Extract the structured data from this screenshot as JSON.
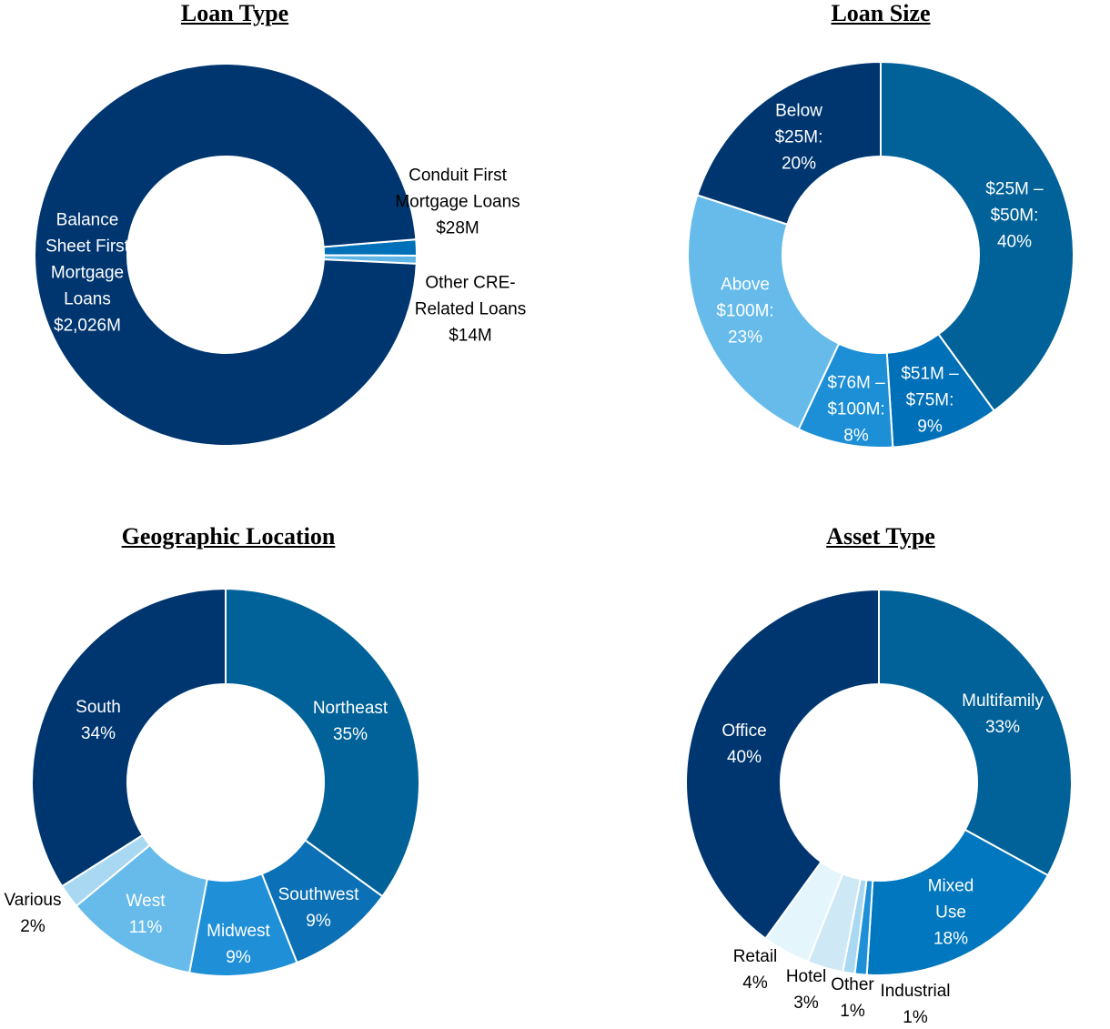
{
  "chart_data": [
    {
      "type": "donut",
      "title": "Loan Type",
      "categories": [
        "Conduit First Mortgage Loans",
        "Other CRE-Related Loans",
        "Balance Sheet First Mortgage Loans"
      ],
      "values": [
        28,
        14,
        2026
      ],
      "value_labels": [
        "$28M",
        "$14M",
        "$2,026M"
      ],
      "colors": [
        "#0070b8",
        "#5fb4e6",
        "#003670"
      ]
    },
    {
      "type": "donut",
      "title": "Loan Size",
      "categories": [
        "$25M – $50M:",
        "$51M – $75M:",
        "$76M – $100M:",
        "Above $100M:",
        "Below $25M:"
      ],
      "values": [
        40,
        9,
        8,
        23,
        20
      ],
      "value_labels": [
        "40%",
        "9%",
        "8%",
        "23%",
        "20%"
      ],
      "colors": [
        "#006299",
        "#0070b8",
        "#1c8fd6",
        "#66bbeb",
        "#003670"
      ]
    },
    {
      "type": "donut",
      "title": "Geographic Location",
      "categories": [
        "Northeast",
        "Southwest",
        "Midwest",
        "West",
        "Various",
        "South"
      ],
      "values": [
        35,
        9,
        9,
        11,
        2,
        34
      ],
      "value_labels": [
        "35%",
        "9%",
        "9%",
        "11%",
        "2%",
        "34%"
      ],
      "colors": [
        "#006299",
        "#0b70b5",
        "#1f90d8",
        "#66bbea",
        "#a9d8f2",
        "#003670"
      ]
    },
    {
      "type": "donut",
      "title": "Asset Type",
      "categories": [
        "Multifamily",
        "Mixed Use",
        "Industrial",
        "Other",
        "Hotel",
        "Retail",
        "Office"
      ],
      "values": [
        33,
        18,
        1,
        1,
        3,
        4,
        40
      ],
      "value_labels": [
        "33%",
        "18%",
        "1%",
        "1%",
        "3%",
        "4%",
        "40%"
      ],
      "colors": [
        "#006299",
        "#0077be",
        "#1e90d8",
        "#a9d8f2",
        "#cfe8f6",
        "#e4f5fc",
        "#003670"
      ]
    }
  ]
}
